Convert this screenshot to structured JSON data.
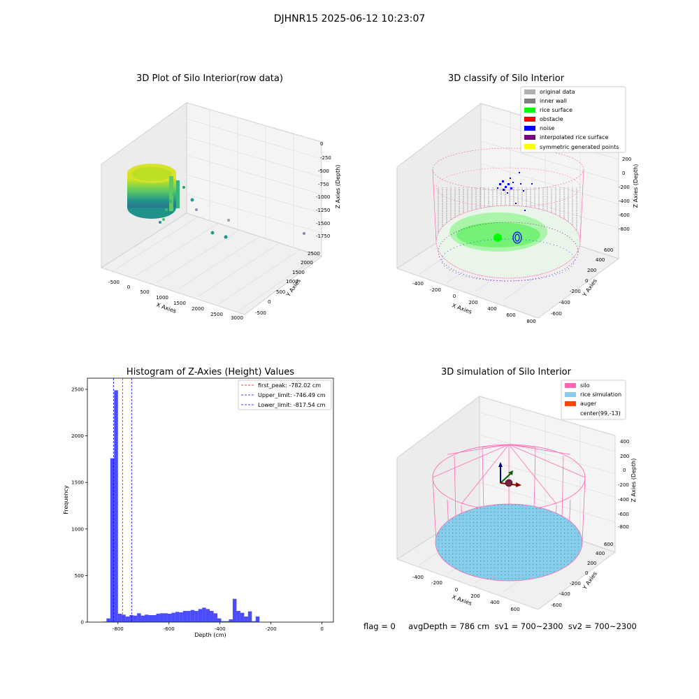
{
  "suptitle": "DJHNR15 2025-06-12 10:23:07",
  "status_line": "flag = 0     avgDepth = 786 cm  sv1 = 700~2300  sv2 = 700~2300",
  "colors": {
    "silo": "#ff69b4",
    "rice_sim": "#87ceeb",
    "auger": "#ff4500",
    "hist_bar": "#0000ff",
    "peak_line": "#ff0000",
    "limit_line": "#0000ff",
    "pane": "#f2f2f2",
    "grid": "#d9d9d9",
    "original": "#b0b0b0",
    "inner_wall": "#808080",
    "rice_surface": "#00ff00",
    "obstacle": "#ff0000",
    "noise": "#0000ff",
    "interp": "#800080",
    "symmetric": "#ffff00"
  },
  "chart_data": [
    {
      "type": "scatter",
      "title": "3D Plot of Silo Interior(row data)",
      "xlabel": "X Axies",
      "ylabel": "Y Axies",
      "zlabel": "Z Axies (Depth)",
      "x_ticks": [
        "-500",
        "0",
        "500",
        "1000",
        "1500",
        "2000",
        "2500",
        "3000"
      ],
      "y_ticks": [
        "-500",
        "0",
        "500",
        "1000",
        "1500",
        "2000",
        "2500"
      ],
      "z_ticks": [
        "0",
        "-250",
        "-500",
        "-750",
        "-1000",
        "-1250",
        "-1500",
        "-1750"
      ]
    },
    {
      "type": "scatter",
      "title": "3D classify of Silo Interior",
      "xlabel": "X Axies",
      "ylabel": "Y Axies",
      "zlabel": "Z Axies (Depth)",
      "x_ticks": [
        "-400",
        "-200",
        "0",
        "200",
        "400",
        "600",
        "800"
      ],
      "y_ticks": [
        "-600",
        "-400",
        "-200",
        "0",
        "200",
        "400",
        "600"
      ],
      "z_ticks": [
        "200",
        "0",
        "-200",
        "-400",
        "-600",
        "-800"
      ],
      "legend_position": "top-right",
      "legend": [
        "original data",
        "inner wall",
        "rice surface",
        "obstacle",
        "noise",
        "interpolated rice surface",
        "symmetric generated points"
      ]
    },
    {
      "type": "bar",
      "title": "Histogram of Z-Axies (Height) Values",
      "xlabel": "Depth (cm)",
      "ylabel": "Frequency",
      "xlim": [
        -920,
        45
      ],
      "ylim": [
        0,
        2620
      ],
      "x_ticks": [
        -800,
        -600,
        -400,
        -200,
        0
      ],
      "y_ticks": [
        0,
        500,
        1000,
        1500,
        2000,
        2500
      ],
      "bin_start": -860,
      "bin_width": 15,
      "values": [
        5,
        40,
        1760,
        2490,
        90,
        80,
        60,
        75,
        70,
        95,
        70,
        80,
        75,
        75,
        90,
        95,
        95,
        90,
        100,
        110,
        105,
        120,
        120,
        130,
        120,
        140,
        155,
        140,
        120,
        95,
        40,
        10,
        10,
        30,
        250,
        120,
        100,
        60,
        115,
        10,
        60
      ],
      "lines": [
        {
          "label": "first_peak: -782.02 cm",
          "x": -782.02,
          "style": "red"
        },
        {
          "label": "Upper_limit: -746.49 cm",
          "x": -746.49,
          "style": "blue"
        },
        {
          "label": "Lower_limit: -817.54 cm",
          "x": -817.54,
          "style": "blue"
        }
      ],
      "legend_position": "top-right"
    },
    {
      "type": "scatter",
      "title": "3D simulation of Silo Interior",
      "xlabel": "X Axies",
      "ylabel": "Y Axies",
      "zlabel": "Z Axies (Depth)",
      "x_ticks": [
        "-400",
        "-200",
        "0",
        "200",
        "400",
        "600"
      ],
      "y_ticks": [
        "-600",
        "-400",
        "-200",
        "0",
        "200",
        "400",
        "600"
      ],
      "z_ticks": [
        "400",
        "200",
        "0",
        "-200",
        "-400",
        "-600",
        "-800"
      ],
      "legend_position": "top-right",
      "legend": [
        "silo",
        "rice simulation",
        "auger",
        "center(99,-13)"
      ]
    }
  ]
}
